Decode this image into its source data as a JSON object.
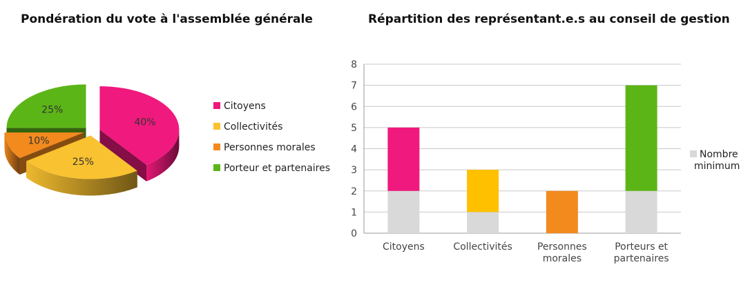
{
  "chart_data": [
    {
      "type": "pie",
      "title": "Pondération du vote à l'assemblée générale",
      "style": "3d-exploded",
      "legend_position": "right",
      "slices": [
        {
          "label": "Citoyens",
          "value": 40,
          "display": "40%",
          "color": "#f0197d"
        },
        {
          "label": "Collectivités",
          "value": 25,
          "display": "25%",
          "color": "#f9c230"
        },
        {
          "label": "Personnes morales",
          "value": 10,
          "display": "10%",
          "color": "#f28a1e"
        },
        {
          "label": "Porteur et partenaires",
          "value": 25,
          "display": "25%",
          "color": "#5cb517"
        }
      ]
    },
    {
      "type": "bar",
      "stacked": true,
      "title": "Répartition des représentant.e.s au conseil de gestion",
      "categories": [
        "Citoyens",
        "Collectivités",
        "Personnes morales",
        "Porteurs et partenaires"
      ],
      "category_lines": [
        [
          "Citoyens"
        ],
        [
          "Collectivités"
        ],
        [
          "Personnes",
          "morales"
        ],
        [
          "Porteurs et",
          "partenaires"
        ]
      ],
      "series": [
        {
          "name": "Nombre minimum",
          "values": [
            2,
            1,
            0,
            2
          ],
          "colors": [
            "#d9d9d9",
            "#d9d9d9",
            "#d9d9d9",
            "#d9d9d9"
          ]
        },
        {
          "values": [
            3,
            2,
            2,
            5
          ],
          "colors": [
            "#f0197d",
            "#ffc000",
            "#f28a1e",
            "#5cb517"
          ]
        }
      ],
      "legend": {
        "name_lines": [
          "Nombre",
          "minimum"
        ],
        "color": "#d9d9d9",
        "position": "right"
      },
      "ylim": [
        0,
        8
      ],
      "yticks": [
        0,
        1,
        2,
        3,
        4,
        5,
        6,
        7,
        8
      ],
      "grid": true
    }
  ]
}
